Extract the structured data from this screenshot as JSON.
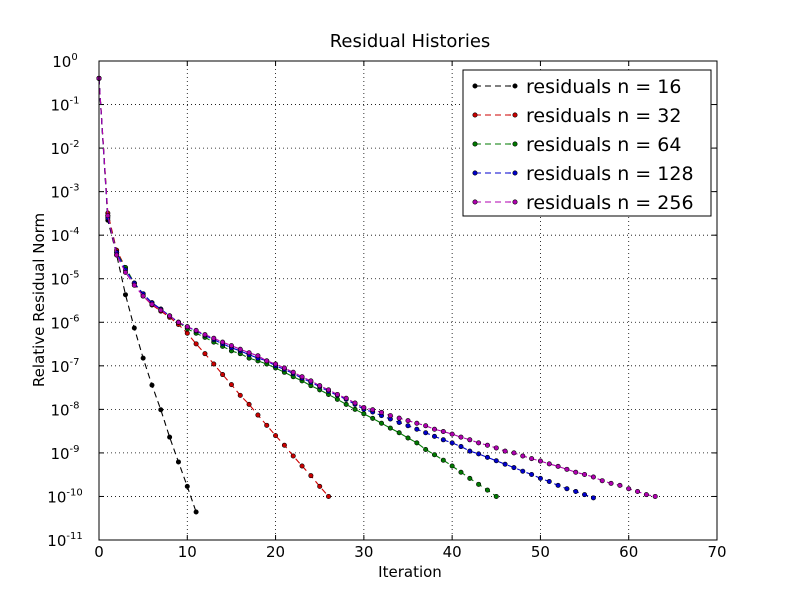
{
  "chart_data": {
    "type": "line",
    "title": "Residual Histories",
    "xlabel": "Iteration",
    "ylabel": "Relative Residual Norm",
    "xlim": [
      0,
      70
    ],
    "xticks": [
      0,
      10,
      20,
      30,
      40,
      50,
      60,
      70
    ],
    "ylim": [
      1e-11,
      1
    ],
    "yscale": "log",
    "yticks": [
      {
        "value": 1,
        "label": "10^0"
      },
      {
        "value": 0.1,
        "label": "10^-1"
      },
      {
        "value": 0.01,
        "label": "10^-2"
      },
      {
        "value": 0.001,
        "label": "10^-3"
      },
      {
        "value": 0.0001,
        "label": "10^-4"
      },
      {
        "value": 1e-05,
        "label": "10^-5"
      },
      {
        "value": 1e-06,
        "label": "10^-6"
      },
      {
        "value": 1e-07,
        "label": "10^-7"
      },
      {
        "value": 1e-08,
        "label": "10^-8"
      },
      {
        "value": 1e-09,
        "label": "10^-9"
      },
      {
        "value": 1e-10,
        "label": "10^-10"
      },
      {
        "value": 1e-11,
        "label": "10^-11"
      }
    ],
    "grid": true,
    "legend": "upper right",
    "x": [
      0,
      1,
      2,
      3,
      4,
      5,
      6,
      7,
      8,
      9,
      10,
      11,
      12,
      13,
      14,
      15,
      16,
      17,
      18,
      19,
      20,
      21,
      22,
      23,
      24,
      25,
      26,
      27,
      28,
      29,
      30,
      31,
      32,
      33,
      34,
      35,
      36,
      37,
      38,
      39,
      40,
      41,
      42,
      43,
      44,
      45,
      46,
      47,
      48,
      49,
      50,
      51,
      52,
      53,
      54,
      55,
      56,
      57,
      58,
      59,
      60,
      61,
      62,
      63
    ],
    "series": [
      {
        "name": "residuals n = 16",
        "color": "#000000",
        "values": [
          0.4,
          0.00022,
          3.5e-05,
          4.3e-06,
          7.4e-07,
          1.5e-07,
          3.6e-08,
          9.8e-09,
          2.3e-09,
          6.2e-10,
          1.7e-10,
          4.4e-11,
          null,
          null,
          null,
          null,
          null,
          null,
          null,
          null,
          null,
          null,
          null,
          null,
          null,
          null,
          null,
          null,
          null,
          null,
          null,
          null,
          null,
          null,
          null,
          null,
          null,
          null,
          null,
          null,
          null,
          null,
          null,
          null,
          null,
          null,
          null,
          null,
          null,
          null,
          null,
          null,
          null,
          null,
          null,
          null,
          null,
          null,
          null,
          null,
          null,
          null,
          null,
          null
        ]
      },
      {
        "name": "residuals n = 32",
        "color": "#cc0000",
        "values": [
          0.4,
          0.00032,
          4.5e-05,
          1.8e-05,
          7.9e-06,
          4e-06,
          2.5e-06,
          1.8e-06,
          1.3e-06,
          8.9e-07,
          5.6e-07,
          3.2e-07,
          1.9e-07,
          1.1e-07,
          6.3e-08,
          3.7e-08,
          2.1e-08,
          1.3e-08,
          7.4e-09,
          4.3e-09,
          2.5e-09,
          1.5e-09,
          8.5e-10,
          5e-10,
          3e-10,
          1.7e-10,
          1e-10,
          null,
          null,
          null,
          null,
          null,
          null,
          null,
          null,
          null,
          null,
          null,
          null,
          null,
          null,
          null,
          null,
          null,
          null,
          null,
          null,
          null,
          null,
          null,
          null,
          null,
          null,
          null,
          null,
          null,
          null,
          null,
          null,
          null,
          null,
          null,
          null,
          null
        ]
      },
      {
        "name": "residuals n = 64",
        "color": "#007a00",
        "values": [
          0.4,
          0.00028,
          4e-05,
          1.8e-05,
          7.9e-06,
          4.5e-06,
          2.8e-06,
          2e-06,
          1.4e-06,
          1e-06,
          7.1e-07,
          5.6e-07,
          4.5e-07,
          3.5e-07,
          2.8e-07,
          2.2e-07,
          1.9e-07,
          1.5e-07,
          1.3e-07,
          1.1e-07,
          8.9e-08,
          7.1e-08,
          5.6e-08,
          4.5e-08,
          3.5e-08,
          2.8e-08,
          2.2e-08,
          1.7e-08,
          1.3e-08,
          1e-08,
          7.9e-09,
          6.2e-09,
          4.8e-09,
          3.7e-09,
          2.9e-09,
          2.2e-09,
          1.7e-09,
          1.2e-09,
          9.1e-10,
          6.8e-10,
          5e-10,
          3.6e-10,
          2.6e-10,
          1.9e-10,
          1.4e-10,
          1e-10,
          null,
          null,
          null,
          null,
          null,
          null,
          null,
          null,
          null,
          null,
          null,
          null,
          null,
          null,
          null,
          null,
          null,
          null
        ]
      },
      {
        "name": "residuals n = 128",
        "color": "#0000cc",
        "values": [
          0.4,
          0.00025,
          4e-05,
          1.6e-05,
          7.9e-06,
          4.5e-06,
          2.8e-06,
          2e-06,
          1.4e-06,
          1e-06,
          7.9e-07,
          6.3e-07,
          5e-07,
          4e-07,
          3.2e-07,
          2.6e-07,
          2.2e-07,
          1.8e-07,
          1.5e-07,
          1.3e-07,
          1e-07,
          8.3e-08,
          6.6e-08,
          5.2e-08,
          4.2e-08,
          3.3e-08,
          2.6e-08,
          2.1e-08,
          1.7e-08,
          1.3e-08,
          1e-08,
          8.7e-09,
          7.2e-09,
          6e-09,
          5e-09,
          4.2e-09,
          3.5e-09,
          2.9e-09,
          2.4e-09,
          2e-09,
          1.7e-09,
          1.4e-09,
          1.1e-09,
          9.5e-10,
          7.9e-10,
          6.6e-10,
          5.5e-10,
          4.6e-10,
          3.8e-10,
          3.2e-10,
          2.6e-10,
          2.2e-10,
          1.8e-10,
          1.5e-10,
          1.3e-10,
          1.1e-10,
          9.3e-11,
          null,
          null,
          null,
          null,
          null,
          null,
          null
        ]
      },
      {
        "name": "residuals n = 256",
        "color": "#b000b0",
        "values": [
          0.4,
          0.00028,
          3.5e-05,
          1.4e-05,
          7.1e-06,
          4e-06,
          2.6e-06,
          1.9e-06,
          1.4e-06,
          1e-06,
          7.9e-07,
          6.5e-07,
          5.2e-07,
          4.3e-07,
          3.5e-07,
          2.9e-07,
          2.4e-07,
          2e-07,
          1.7e-07,
          1.3e-07,
          1.1e-07,
          8.9e-08,
          7.1e-08,
          5.6e-08,
          4.5e-08,
          3.5e-08,
          2.8e-08,
          2.2e-08,
          1.8e-08,
          1.4e-08,
          1.1e-08,
          9.8e-09,
          8.5e-09,
          7.2e-09,
          6.3e-09,
          5.5e-09,
          4.8e-09,
          4.2e-09,
          3.5e-09,
          3.1e-09,
          2.7e-09,
          2.3e-09,
          2e-09,
          1.7e-09,
          1.5e-09,
          1.3e-09,
          1.1e-09,
          1e-09,
          8.5e-10,
          7.4e-10,
          6.5e-10,
          5.6e-10,
          4.9e-10,
          4.2e-10,
          3.6e-10,
          3.2e-10,
          2.8e-10,
          2.3e-10,
          2e-10,
          1.8e-10,
          1.5e-10,
          1.3e-10,
          1.1e-10,
          1e-10
        ]
      }
    ]
  }
}
